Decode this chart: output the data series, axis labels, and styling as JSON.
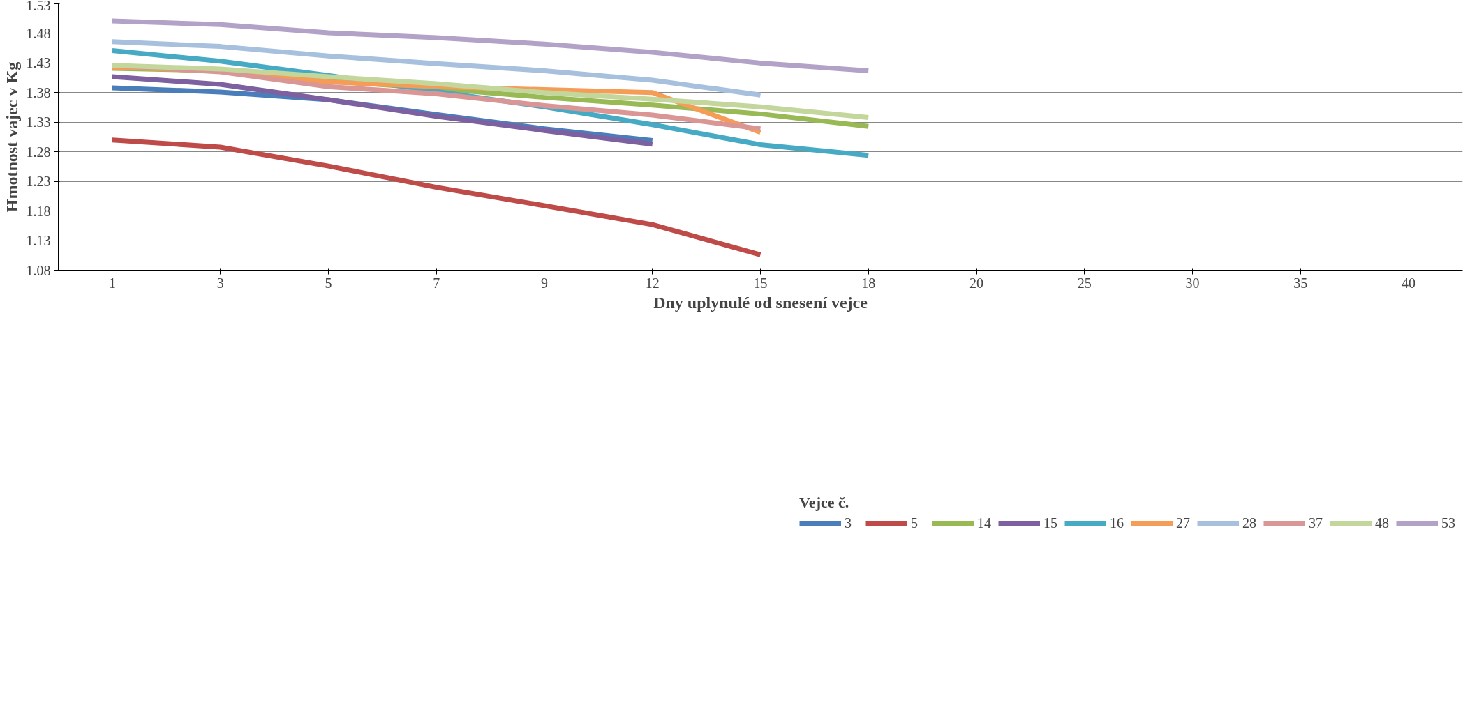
{
  "chart_data": {
    "type": "line",
    "xlabel": "Dny uplynulé od snesení vejce",
    "ylabel": "Hmotnost vajec v Kg",
    "legend_title": "Vejce č.",
    "legend": "bottom",
    "grid": "y",
    "marker": "none",
    "line_style": "solid",
    "categories": [
      "1",
      "3",
      "5",
      "7",
      "9",
      "12",
      "15",
      "18",
      "20",
      "25",
      "30",
      "35",
      "40"
    ],
    "ylim": [
      1.08,
      1.53
    ],
    "yticks": [
      {
        "value": 1.08,
        "label": "1.08"
      },
      {
        "value": 1.13,
        "label": "1.13"
      },
      {
        "value": 1.18,
        "label": "1.18"
      },
      {
        "value": 1.23,
        "label": "1.23"
      },
      {
        "value": 1.28,
        "label": "1.28"
      },
      {
        "value": 1.33,
        "label": "1.33"
      },
      {
        "value": 1.38,
        "label": "1.38"
      },
      {
        "value": 1.43,
        "label": "1.43"
      },
      {
        "value": 1.48,
        "label": "1.48"
      },
      {
        "value": 1.53,
        "label": "1.53"
      }
    ],
    "series": [
      {
        "name": "3",
        "color": "#4a7ebb",
        "values": [
          1.388,
          1.381,
          1.368,
          1.343,
          1.319,
          1.299,
          null,
          null,
          null,
          null,
          null,
          null,
          null
        ]
      },
      {
        "name": "5",
        "color": "#be4b48",
        "values": [
          1.3,
          1.288,
          1.256,
          1.22,
          1.189,
          1.157,
          1.106,
          null,
          null,
          null,
          null,
          null,
          null
        ]
      },
      {
        "name": "14",
        "color": "#98b954",
        "values": [
          1.421,
          1.417,
          1.4,
          1.387,
          1.372,
          1.359,
          1.344,
          1.323,
          null,
          null,
          null,
          null,
          null
        ]
      },
      {
        "name": "15",
        "color": "#7d60a0",
        "values": [
          1.407,
          1.394,
          1.368,
          1.34,
          1.316,
          1.293,
          null,
          null,
          null,
          null,
          null,
          null,
          null
        ]
      },
      {
        "name": "16",
        "color": "#46aac5",
        "values": [
          1.451,
          1.433,
          1.409,
          1.382,
          1.356,
          1.326,
          1.292,
          1.274,
          null,
          null,
          null,
          null,
          null
        ]
      },
      {
        "name": "27",
        "color": "#f59d56",
        "values": [
          1.423,
          1.417,
          1.398,
          1.39,
          1.385,
          1.38,
          1.313,
          null,
          null,
          null,
          null,
          null,
          null
        ]
      },
      {
        "name": "28",
        "color": "#a7c0de",
        "values": [
          1.466,
          1.458,
          1.442,
          1.429,
          1.417,
          1.401,
          1.376,
          null,
          null,
          null,
          null,
          null,
          null
        ]
      },
      {
        "name": "37",
        "color": "#d99694",
        "values": [
          1.426,
          1.415,
          1.39,
          1.378,
          1.358,
          1.342,
          1.319,
          null,
          null,
          null,
          null,
          null,
          null
        ]
      },
      {
        "name": "48",
        "color": "#c3d69b",
        "values": [
          1.426,
          1.42,
          1.407,
          1.395,
          1.38,
          1.369,
          1.356,
          1.338,
          null,
          null,
          null,
          null,
          null
        ]
      },
      {
        "name": "53",
        "color": "#b3a2c7",
        "values": [
          1.501,
          1.495,
          1.481,
          1.473,
          1.462,
          1.448,
          1.43,
          1.417,
          null,
          null,
          null,
          null,
          null
        ]
      }
    ]
  }
}
